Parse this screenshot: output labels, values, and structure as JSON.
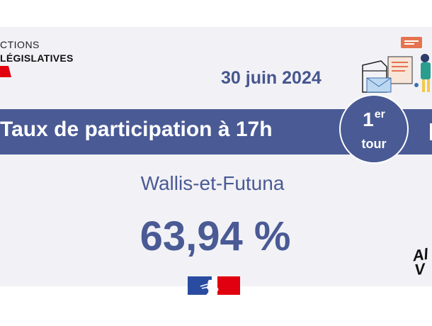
{
  "logo": {
    "line1": "CTIONS",
    "line2": "LÉGISLATIVES"
  },
  "date": "30 juin 2024",
  "banner": {
    "title": "Taux de participation à 17h"
  },
  "tour": {
    "number": "1",
    "suffix": "er",
    "word": "tour"
  },
  "region": "Wallis-et-Futuna",
  "rate": "63,94 %",
  "slogan": {
    "line1": "Al",
    "line2": "V"
  },
  "colors": {
    "primary": "#4a5a95",
    "background": "#f2f2f6",
    "flag_blue": "#2a4ca0",
    "flag_red": "#e1000f"
  },
  "icons": {
    "logo_mark": "marianne-red-mark",
    "illustration": "ballot-box-envelopes-illustration",
    "flag": "republique-francaise-flag-icon"
  }
}
